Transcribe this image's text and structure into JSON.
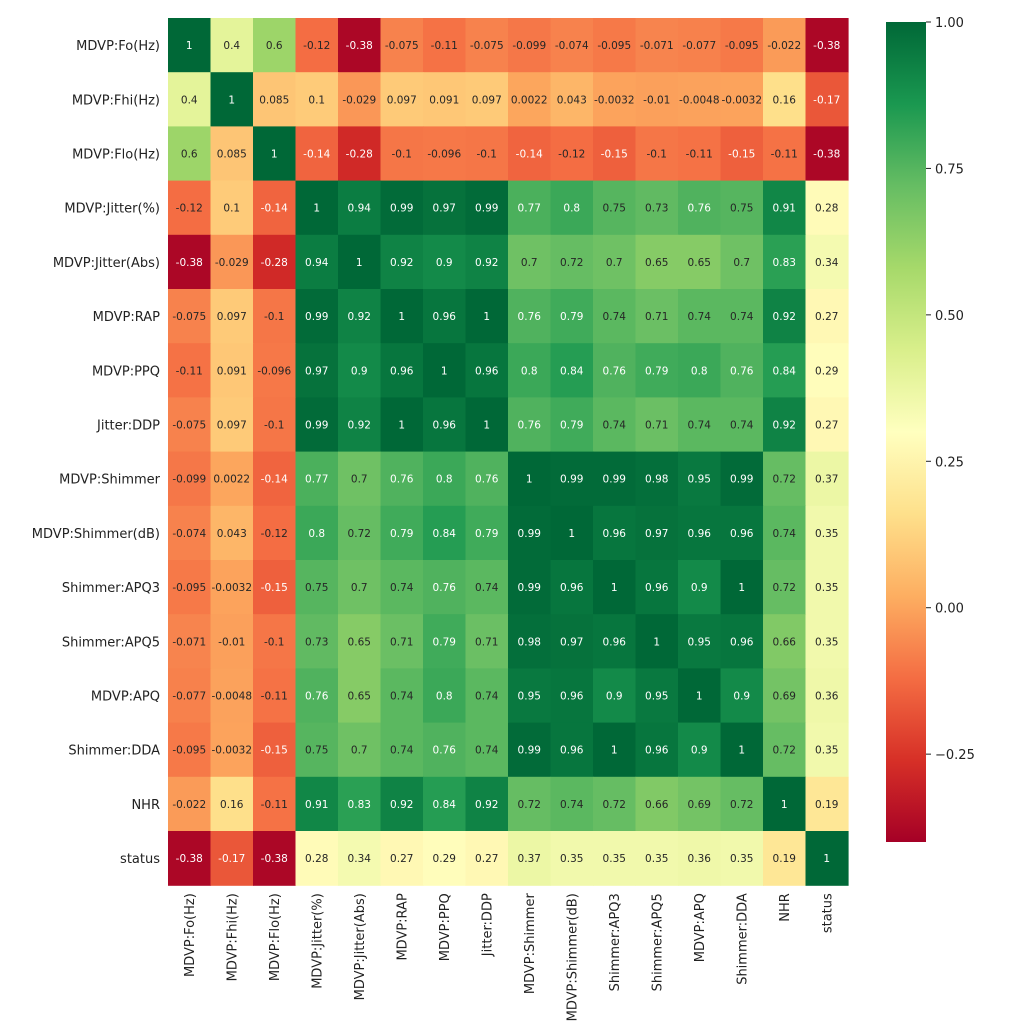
{
  "chart_data": {
    "type": "heatmap",
    "title": "",
    "xlabel": "",
    "ylabel": "",
    "colormap": "RdYlGn",
    "vmin": -0.4,
    "vmax": 1.0,
    "variables": [
      "MDVP:Fo(Hz)",
      "MDVP:Fhi(Hz)",
      "MDVP:Flo(Hz)",
      "MDVP:Jitter(%)",
      "MDVP:Jitter(Abs)",
      "MDVP:RAP",
      "MDVP:PPQ",
      "Jitter:DDP",
      "MDVP:Shimmer",
      "MDVP:Shimmer(dB)",
      "Shimmer:APQ3",
      "Shimmer:APQ5",
      "MDVP:APQ",
      "Shimmer:DDA",
      "NHR",
      "status"
    ],
    "matrix": [
      [
        1,
        0.4,
        0.6,
        -0.12,
        -0.38,
        -0.075,
        -0.11,
        -0.075,
        -0.099,
        -0.074,
        -0.095,
        -0.071,
        -0.077,
        -0.095,
        -0.022,
        -0.38
      ],
      [
        0.4,
        1,
        0.085,
        0.1,
        -0.029,
        0.097,
        0.091,
        0.097,
        0.0022,
        0.043,
        -0.0032,
        -0.01,
        -0.0048,
        -0.0032,
        0.16,
        -0.17
      ],
      [
        0.6,
        0.085,
        1,
        -0.14,
        -0.28,
        -0.1,
        -0.096,
        -0.1,
        -0.14,
        -0.12,
        -0.15,
        -0.1,
        -0.11,
        -0.15,
        -0.11,
        -0.38
      ],
      [
        -0.12,
        0.1,
        -0.14,
        1,
        0.94,
        0.99,
        0.97,
        0.99,
        0.77,
        0.8,
        0.75,
        0.73,
        0.76,
        0.75,
        0.91,
        0.28
      ],
      [
        -0.38,
        -0.029,
        -0.28,
        0.94,
        1,
        0.92,
        0.9,
        0.92,
        0.7,
        0.72,
        0.7,
        0.65,
        0.65,
        0.7,
        0.83,
        0.34
      ],
      [
        -0.075,
        0.097,
        -0.1,
        0.99,
        0.92,
        1,
        0.96,
        1,
        0.76,
        0.79,
        0.74,
        0.71,
        0.74,
        0.74,
        0.92,
        0.27
      ],
      [
        -0.11,
        0.091,
        -0.096,
        0.97,
        0.9,
        0.96,
        1,
        0.96,
        0.8,
        0.84,
        0.76,
        0.79,
        0.8,
        0.76,
        0.84,
        0.29
      ],
      [
        -0.075,
        0.097,
        -0.1,
        0.99,
        0.92,
        1,
        0.96,
        1,
        0.76,
        0.79,
        0.74,
        0.71,
        0.74,
        0.74,
        0.92,
        0.27
      ],
      [
        -0.099,
        0.0022,
        -0.14,
        0.77,
        0.7,
        0.76,
        0.8,
        0.76,
        1,
        0.99,
        0.99,
        0.98,
        0.95,
        0.99,
        0.72,
        0.37
      ],
      [
        -0.074,
        0.043,
        -0.12,
        0.8,
        0.72,
        0.79,
        0.84,
        0.79,
        0.99,
        1,
        0.96,
        0.97,
        0.96,
        0.96,
        0.74,
        0.35
      ],
      [
        -0.095,
        -0.0032,
        -0.15,
        0.75,
        0.7,
        0.74,
        0.76,
        0.74,
        0.99,
        0.96,
        1,
        0.96,
        0.9,
        1,
        0.72,
        0.35
      ],
      [
        -0.071,
        -0.01,
        -0.1,
        0.73,
        0.65,
        0.71,
        0.79,
        0.71,
        0.98,
        0.97,
        0.96,
        1,
        0.95,
        0.96,
        0.66,
        0.35
      ],
      [
        -0.077,
        -0.0048,
        -0.11,
        0.76,
        0.65,
        0.74,
        0.8,
        0.74,
        0.95,
        0.96,
        0.9,
        0.95,
        1,
        0.9,
        0.69,
        0.36
      ],
      [
        -0.095,
        -0.0032,
        -0.15,
        0.75,
        0.7,
        0.74,
        0.76,
        0.74,
        0.99,
        0.96,
        1,
        0.96,
        0.9,
        1,
        0.72,
        0.35
      ],
      [
        -0.022,
        0.16,
        -0.11,
        0.91,
        0.83,
        0.92,
        0.84,
        0.92,
        0.72,
        0.74,
        0.72,
        0.66,
        0.69,
        0.72,
        1,
        0.19
      ],
      [
        -0.38,
        -0.17,
        -0.38,
        0.28,
        0.34,
        0.27,
        0.29,
        0.27,
        0.37,
        0.35,
        0.35,
        0.35,
        0.36,
        0.35,
        0.19,
        1
      ]
    ],
    "colorbar": {
      "ticks": [
        -0.25,
        0.0,
        0.25,
        0.5,
        0.75,
        1.0
      ],
      "tick_labels": [
        "−0.25",
        "0.00",
        "0.25",
        "0.50",
        "0.75",
        "1.00"
      ]
    },
    "grid": false,
    "legend": "colorbar-right"
  }
}
